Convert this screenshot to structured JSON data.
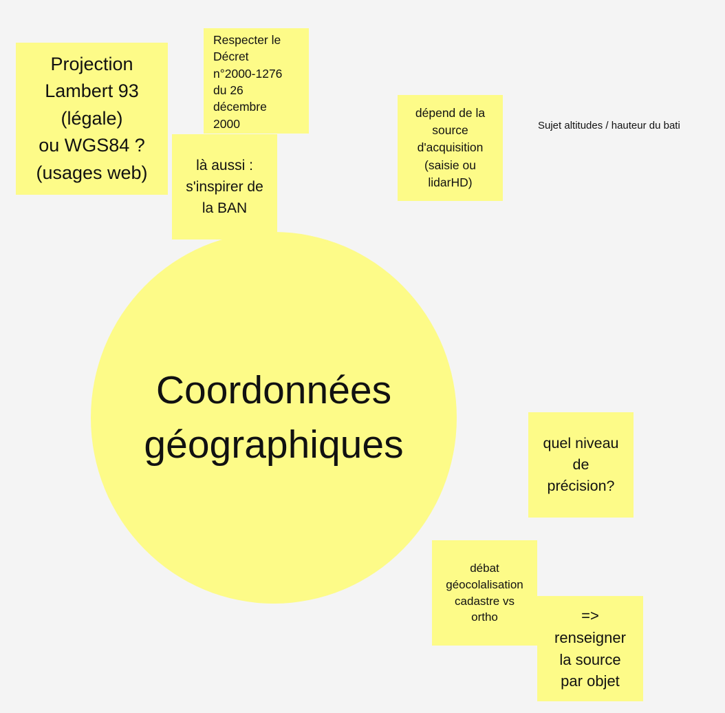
{
  "board": {
    "center": {
      "title": "Coordonnées\ngéographiques"
    },
    "notes": {
      "projection": "Projection\nLambert 93\n(légale)\nou WGS84 ?\n(usages web)",
      "decret": "Respecter le\nDécret\nn°2000-1276\ndu 26\ndécembre\n2000",
      "ban": "là aussi :\ns'inspirer de\nla BAN",
      "source": "dépend de la\nsource\nd'acquisition\n(saisie ou\nlidarHD)",
      "precision": "quel niveau\nde\nprécision?",
      "debat": "débat\ngéocolalisation\ncadastre vs\northo",
      "renseigner": "=>\nrenseigner\nla source\npar objet"
    },
    "free_text": "Sujet altitudes / hauteur du bati"
  },
  "colors": {
    "background": "#f4f4f4",
    "sticky": "#fdfb88",
    "text": "#111111"
  }
}
